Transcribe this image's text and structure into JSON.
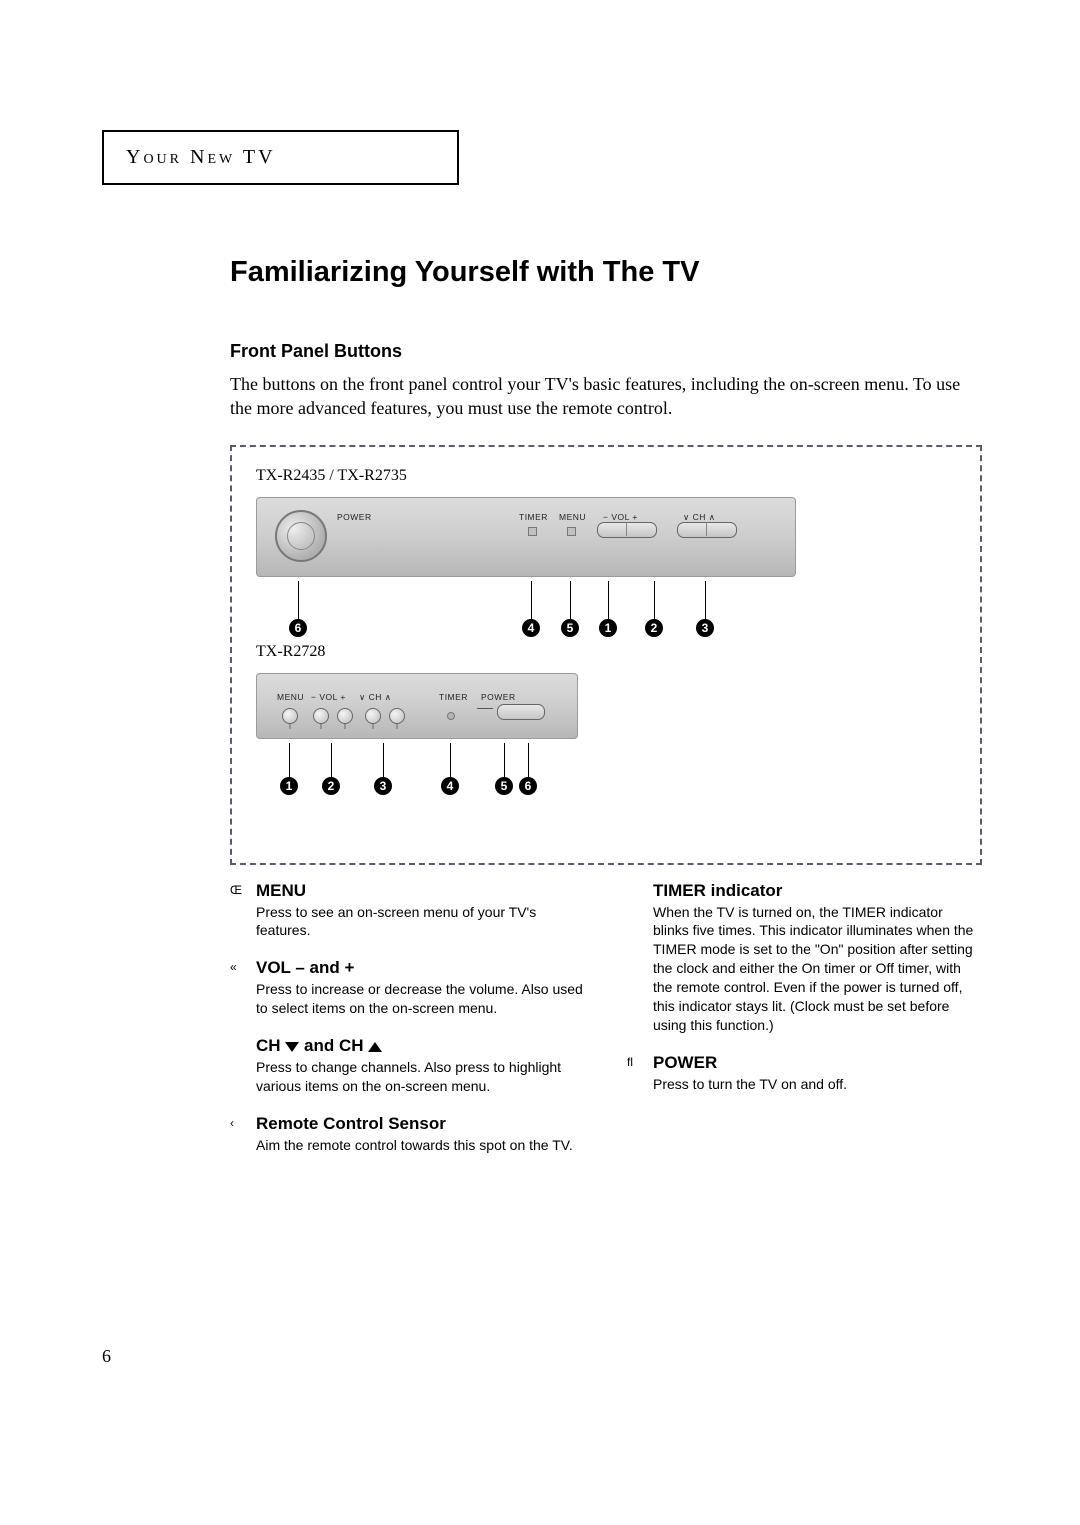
{
  "section_tab": "Your New TV",
  "title": "Familiarizing Yourself with The TV",
  "subhead": "Front Panel Buttons",
  "intro": "The buttons on the front panel control your TV's basic features, including the on-screen menu. To use the more advanced features, you must use the remote control.",
  "figure": {
    "panel_a": {
      "caption": "TX-R2435 / TX-R2735",
      "labels": {
        "power": "POWER",
        "timer": "TIMER",
        "menu": "MENU",
        "vol": "− VOL +",
        "ch": "∨ CH ∧"
      },
      "callouts": [
        "6",
        "4",
        "5",
        "1",
        "2",
        "3"
      ]
    },
    "panel_b": {
      "caption": "TX-R2728",
      "labels": {
        "menu": "MENU",
        "vol": "− VOL +",
        "ch": "∨ CH ∧",
        "timer": "TIMER",
        "power": "POWER"
      },
      "callouts": [
        "1",
        "2",
        "3",
        "4",
        "5",
        "6"
      ]
    }
  },
  "features": {
    "left": [
      {
        "bullet": "Œ",
        "title": "MENU",
        "body": "Press to see an on-screen menu of your TV's features."
      },
      {
        "bullet": "«",
        "title": "VOL – and +",
        "body": "Press to increase or decrease the volume. Also used to select items on the on-screen menu."
      },
      {
        "bullet": "",
        "title": "CH __DOWN__ and CH __UP__",
        "body": "Press to change channels. Also press to highlight various items on the on-screen menu."
      },
      {
        "bullet": "‹",
        "title": "Remote Control Sensor",
        "body": "Aim the remote control towards this spot on the TV."
      }
    ],
    "right": [
      {
        "bullet": "",
        "title": "TIMER indicator",
        "body": "When the TV is turned on, the TIMER indicator blinks five times. This indicator illuminates when the TIMER mode is set to the \"On\" position after setting the clock and either the On timer or Off timer, with the remote control. Even if the power is turned off, this indicator stays lit. (Clock must be set before using this function.)"
      },
      {
        "bullet": "ﬂ",
        "title": "POWER",
        "body": "Press to turn the TV on and off."
      }
    ]
  },
  "page_number": "6",
  "colors": {
    "dashed_border": "#5b5b6b",
    "panel_bg_top": "#dcdcdc",
    "panel_bg_bot": "#b7b7b7"
  }
}
